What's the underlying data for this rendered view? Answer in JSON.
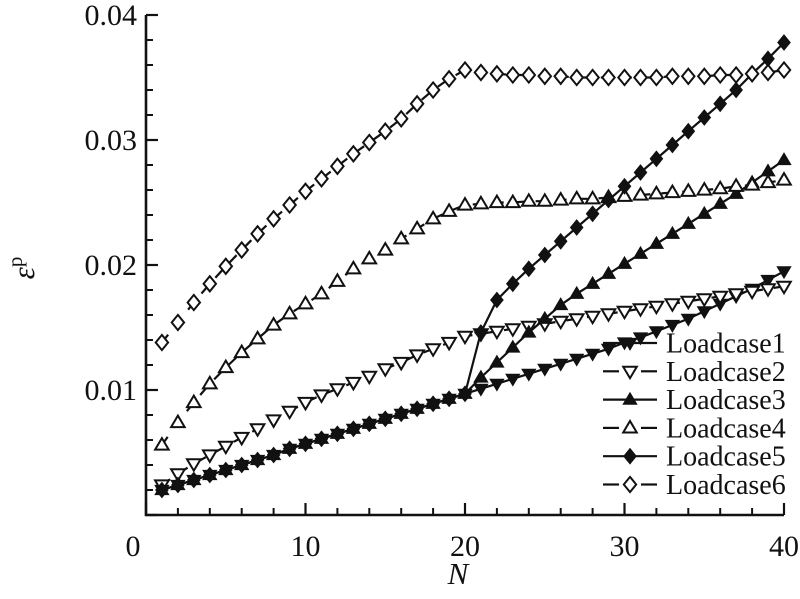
{
  "figure": {
    "background": "#ffffff",
    "ink_color": "#111111"
  },
  "chart_data": {
    "type": "line",
    "title": "",
    "xlabel": "N",
    "ylabel_base": "ε",
    "ylabel_sup": "p",
    "xlim": [
      0,
      40
    ],
    "ylim": [
      0,
      0.04
    ],
    "grid": false,
    "legend_position": "bottom-right",
    "x_major_ticks": [
      0,
      10,
      20,
      30,
      40
    ],
    "x_tick_labels": [
      "0",
      "10",
      "20",
      "30",
      "40"
    ],
    "x_minor_step": 2,
    "y_major_ticks": [
      0,
      0.01,
      0.02,
      0.03,
      0.04
    ],
    "y_labeled_ticks": [
      0.01,
      0.02,
      0.03,
      0.04
    ],
    "y_tick_labels": [
      "0.01",
      "0.02",
      "0.03",
      "0.04"
    ],
    "y_minor_step": 0.002,
    "x": [
      1,
      2,
      3,
      4,
      5,
      6,
      7,
      8,
      9,
      10,
      11,
      12,
      13,
      14,
      15,
      16,
      17,
      18,
      19,
      20,
      21,
      22,
      23,
      24,
      25,
      26,
      27,
      28,
      29,
      30,
      31,
      32,
      33,
      34,
      35,
      36,
      37,
      38,
      39,
      40
    ],
    "series": [
      {
        "name": "Loadcase1",
        "marker": "triangle-down",
        "marker_fill": "filled",
        "line_style": "solid",
        "values": [
          0.002,
          0.0024,
          0.0028,
          0.0032,
          0.0036,
          0.004,
          0.0044,
          0.0048,
          0.0053,
          0.0057,
          0.0061,
          0.0065,
          0.0069,
          0.0073,
          0.0077,
          0.0081,
          0.0085,
          0.0089,
          0.0093,
          0.0097,
          0.0101,
          0.0105,
          0.0109,
          0.0113,
          0.0117,
          0.0121,
          0.0125,
          0.0129,
          0.0133,
          0.0138,
          0.0142,
          0.0147,
          0.0152,
          0.0157,
          0.0163,
          0.0169,
          0.0175,
          0.0181,
          0.0188,
          0.0195
        ]
      },
      {
        "name": "Loadcase2",
        "marker": "triangle-down",
        "marker_fill": "open",
        "line_style": "dashed",
        "values": [
          0.0024,
          0.0033,
          0.0041,
          0.0048,
          0.0055,
          0.0062,
          0.0069,
          0.0076,
          0.0083,
          0.009,
          0.0096,
          0.0101,
          0.0106,
          0.0111,
          0.0117,
          0.0122,
          0.0128,
          0.0133,
          0.0138,
          0.0143,
          0.0145,
          0.0147,
          0.0149,
          0.0151,
          0.0153,
          0.0155,
          0.0157,
          0.0159,
          0.0161,
          0.0163,
          0.0165,
          0.0167,
          0.0169,
          0.0171,
          0.0173,
          0.0175,
          0.0177,
          0.0179,
          0.0181,
          0.0183
        ]
      },
      {
        "name": "Loadcase3",
        "marker": "triangle-up",
        "marker_fill": "filled",
        "line_style": "solid",
        "values": [
          0.002,
          0.0024,
          0.0028,
          0.0032,
          0.0036,
          0.004,
          0.0044,
          0.0048,
          0.0053,
          0.0057,
          0.0061,
          0.0065,
          0.0069,
          0.0073,
          0.0077,
          0.0081,
          0.0085,
          0.0089,
          0.0093,
          0.0097,
          0.011,
          0.0122,
          0.0134,
          0.0146,
          0.0157,
          0.0168,
          0.0177,
          0.0185,
          0.0193,
          0.0201,
          0.0209,
          0.0217,
          0.0225,
          0.0233,
          0.0241,
          0.0249,
          0.0257,
          0.0266,
          0.0275,
          0.0284
        ]
      },
      {
        "name": "Loadcase4",
        "marker": "triangle-up",
        "marker_fill": "open",
        "line_style": "dashed",
        "values": [
          0.0056,
          0.0074,
          0.009,
          0.0105,
          0.0118,
          0.013,
          0.0141,
          0.0152,
          0.0161,
          0.0169,
          0.0177,
          0.0187,
          0.0197,
          0.0205,
          0.0212,
          0.0221,
          0.0229,
          0.0237,
          0.0243,
          0.0248,
          0.0249,
          0.025,
          0.025,
          0.0251,
          0.0251,
          0.0252,
          0.0253,
          0.0253,
          0.0254,
          0.0255,
          0.0256,
          0.0257,
          0.0258,
          0.0259,
          0.026,
          0.0261,
          0.0263,
          0.0264,
          0.0266,
          0.0268
        ]
      },
      {
        "name": "Loadcase5",
        "marker": "diamond",
        "marker_fill": "filled",
        "line_style": "solid",
        "values": [
          0.002,
          0.0024,
          0.0028,
          0.0032,
          0.0036,
          0.004,
          0.0044,
          0.0048,
          0.0053,
          0.0057,
          0.0061,
          0.0065,
          0.0069,
          0.0073,
          0.0077,
          0.0081,
          0.0085,
          0.0089,
          0.0093,
          0.0097,
          0.0146,
          0.0172,
          0.0185,
          0.0197,
          0.0208,
          0.0219,
          0.023,
          0.0241,
          0.0252,
          0.0263,
          0.0274,
          0.0285,
          0.0296,
          0.0307,
          0.0318,
          0.0329,
          0.034,
          0.0353,
          0.0365,
          0.0378
        ]
      },
      {
        "name": "Loadcase6",
        "marker": "diamond",
        "marker_fill": "open",
        "line_style": "dashed",
        "values": [
          0.0138,
          0.0154,
          0.017,
          0.0185,
          0.0199,
          0.0212,
          0.0225,
          0.0237,
          0.0248,
          0.0259,
          0.0269,
          0.0279,
          0.0289,
          0.0298,
          0.0307,
          0.0317,
          0.0329,
          0.034,
          0.0349,
          0.0356,
          0.0354,
          0.0353,
          0.0352,
          0.0352,
          0.0351,
          0.0351,
          0.035,
          0.035,
          0.035,
          0.035,
          0.035,
          0.035,
          0.0351,
          0.0351,
          0.0351,
          0.0352,
          0.0352,
          0.0353,
          0.0354,
          0.0356
        ]
      }
    ]
  }
}
